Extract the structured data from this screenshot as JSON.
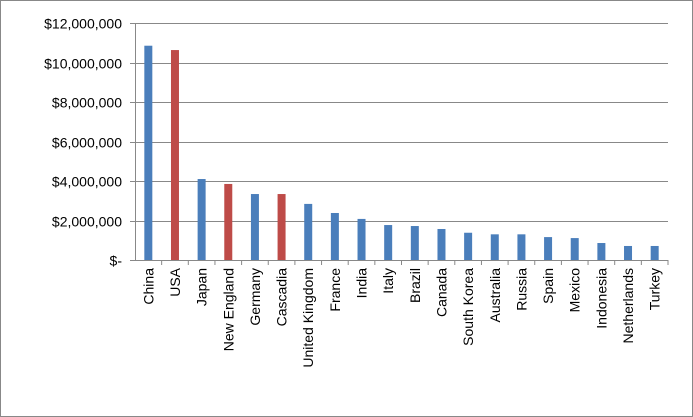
{
  "chart_data": {
    "type": "bar",
    "categories": [
      "China",
      "USA",
      "Japan",
      "New England",
      "Germany",
      "Cascadia",
      "United Kingdom",
      "France",
      "India",
      "Italy",
      "Brazil",
      "Canada",
      "South Korea",
      "Australia",
      "Russia",
      "Spain",
      "Mexico",
      "Indonesia",
      "Netherlands",
      "Turkey"
    ],
    "values": [
      10850000,
      10630000,
      4100000,
      3850000,
      3340000,
      3340000,
      2840000,
      2380000,
      2080000,
      1770000,
      1720000,
      1570000,
      1380000,
      1300000,
      1300000,
      1160000,
      1110000,
      860000,
      710000,
      710000
    ],
    "colors": [
      "#4a7ebb",
      "#be4b48",
      "#4a7ebb",
      "#be4b48",
      "#4a7ebb",
      "#be4b48",
      "#4a7ebb",
      "#4a7ebb",
      "#4a7ebb",
      "#4a7ebb",
      "#4a7ebb",
      "#4a7ebb",
      "#4a7ebb",
      "#4a7ebb",
      "#4a7ebb",
      "#4a7ebb",
      "#4a7ebb",
      "#4a7ebb",
      "#4a7ebb",
      "#4a7ebb"
    ],
    "ylim": [
      0,
      12000000
    ],
    "yticks": [
      {
        "value": 0,
        "label": "$-"
      },
      {
        "value": 2000000,
        "label": "$2,000,000"
      },
      {
        "value": 4000000,
        "label": "$4,000,000"
      },
      {
        "value": 6000000,
        "label": "$6,000,000"
      },
      {
        "value": 8000000,
        "label": "$8,000,000"
      },
      {
        "value": 10000000,
        "label": "$10,000,000"
      },
      {
        "value": 12000000,
        "label": "$12,000,000"
      }
    ],
    "grid": true
  }
}
